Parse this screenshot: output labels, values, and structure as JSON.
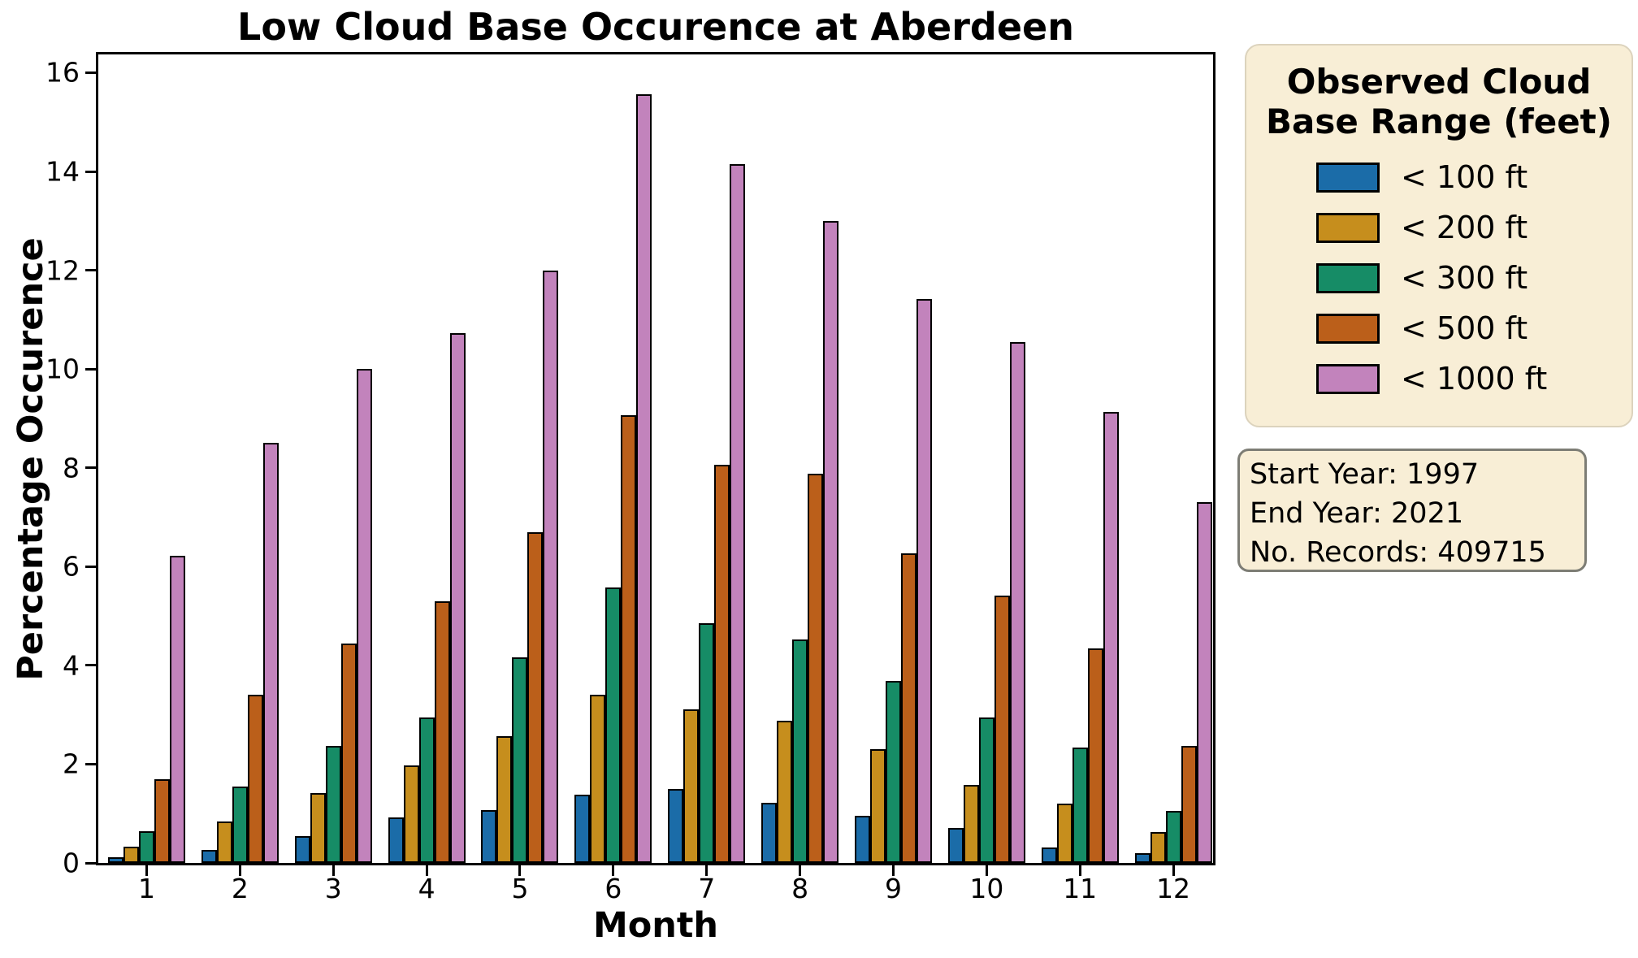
{
  "title": "Low Cloud Base Occurence at Aberdeen",
  "axes": {
    "x_label": "Month",
    "y_label": "Percentage Occurence",
    "y_ticks": [
      0,
      2,
      4,
      6,
      8,
      10,
      12,
      14,
      16
    ],
    "x_tick_labels": [
      "1",
      "2",
      "3",
      "4",
      "5",
      "6",
      "7",
      "8",
      "9",
      "10",
      "11",
      "12"
    ]
  },
  "legend": {
    "title_line1": "Observed Cloud",
    "title_line2": "Base Range (feet)",
    "items": [
      {
        "label": "< 100 ft",
        "color": "#1b6ca8"
      },
      {
        "label": "< 200 ft",
        "color": "#c68e1d"
      },
      {
        "label": "< 300 ft",
        "color": "#168c66"
      },
      {
        "label": "< 500 ft",
        "color": "#bb5f1a"
      },
      {
        "label": "< 1000 ft",
        "color": "#c283bc"
      }
    ]
  },
  "info_box": {
    "lines": [
      "Start Year: 1997",
      "End Year: 2021",
      "No. Records: 409715"
    ]
  },
  "chart_data": {
    "type": "bar",
    "title": "Low Cloud Base Occurence at Aberdeen",
    "xlabel": "Month",
    "ylabel": "Percentage Occurence",
    "ylim": [
      0,
      16.37
    ],
    "grid": false,
    "legend_position": "outside upper right",
    "legend_title": "Observed Cloud Base Range (feet)",
    "categories": [
      1,
      2,
      3,
      4,
      5,
      6,
      7,
      8,
      9,
      10,
      11,
      12
    ],
    "series": [
      {
        "name": "< 100 ft",
        "color": "#1b6ca8",
        "values": [
          0.11,
          0.27,
          0.54,
          0.92,
          1.07,
          1.38,
          1.49,
          1.22,
          0.95,
          0.7,
          0.31,
          0.2
        ]
      },
      {
        "name": "< 200 ft",
        "color": "#c68e1d",
        "values": [
          0.33,
          0.84,
          1.42,
          1.98,
          2.56,
          3.4,
          3.11,
          2.88,
          2.31,
          1.58,
          1.2,
          0.62
        ]
      },
      {
        "name": "< 300 ft",
        "color": "#168c66",
        "values": [
          0.64,
          1.55,
          2.37,
          2.94,
          4.17,
          5.57,
          4.86,
          4.53,
          3.68,
          2.94,
          2.34,
          1.05
        ]
      },
      {
        "name": "< 500 ft",
        "color": "#bb5f1a",
        "values": [
          1.69,
          3.4,
          4.44,
          5.3,
          6.7,
          9.07,
          8.06,
          7.88,
          6.27,
          5.42,
          4.35,
          2.37
        ]
      },
      {
        "name": "< 1000 ft",
        "color": "#c283bc",
        "values": [
          6.22,
          8.51,
          10.0,
          10.72,
          12.0,
          15.56,
          14.15,
          13.0,
          11.41,
          10.54,
          9.13,
          7.3
        ]
      }
    ]
  }
}
